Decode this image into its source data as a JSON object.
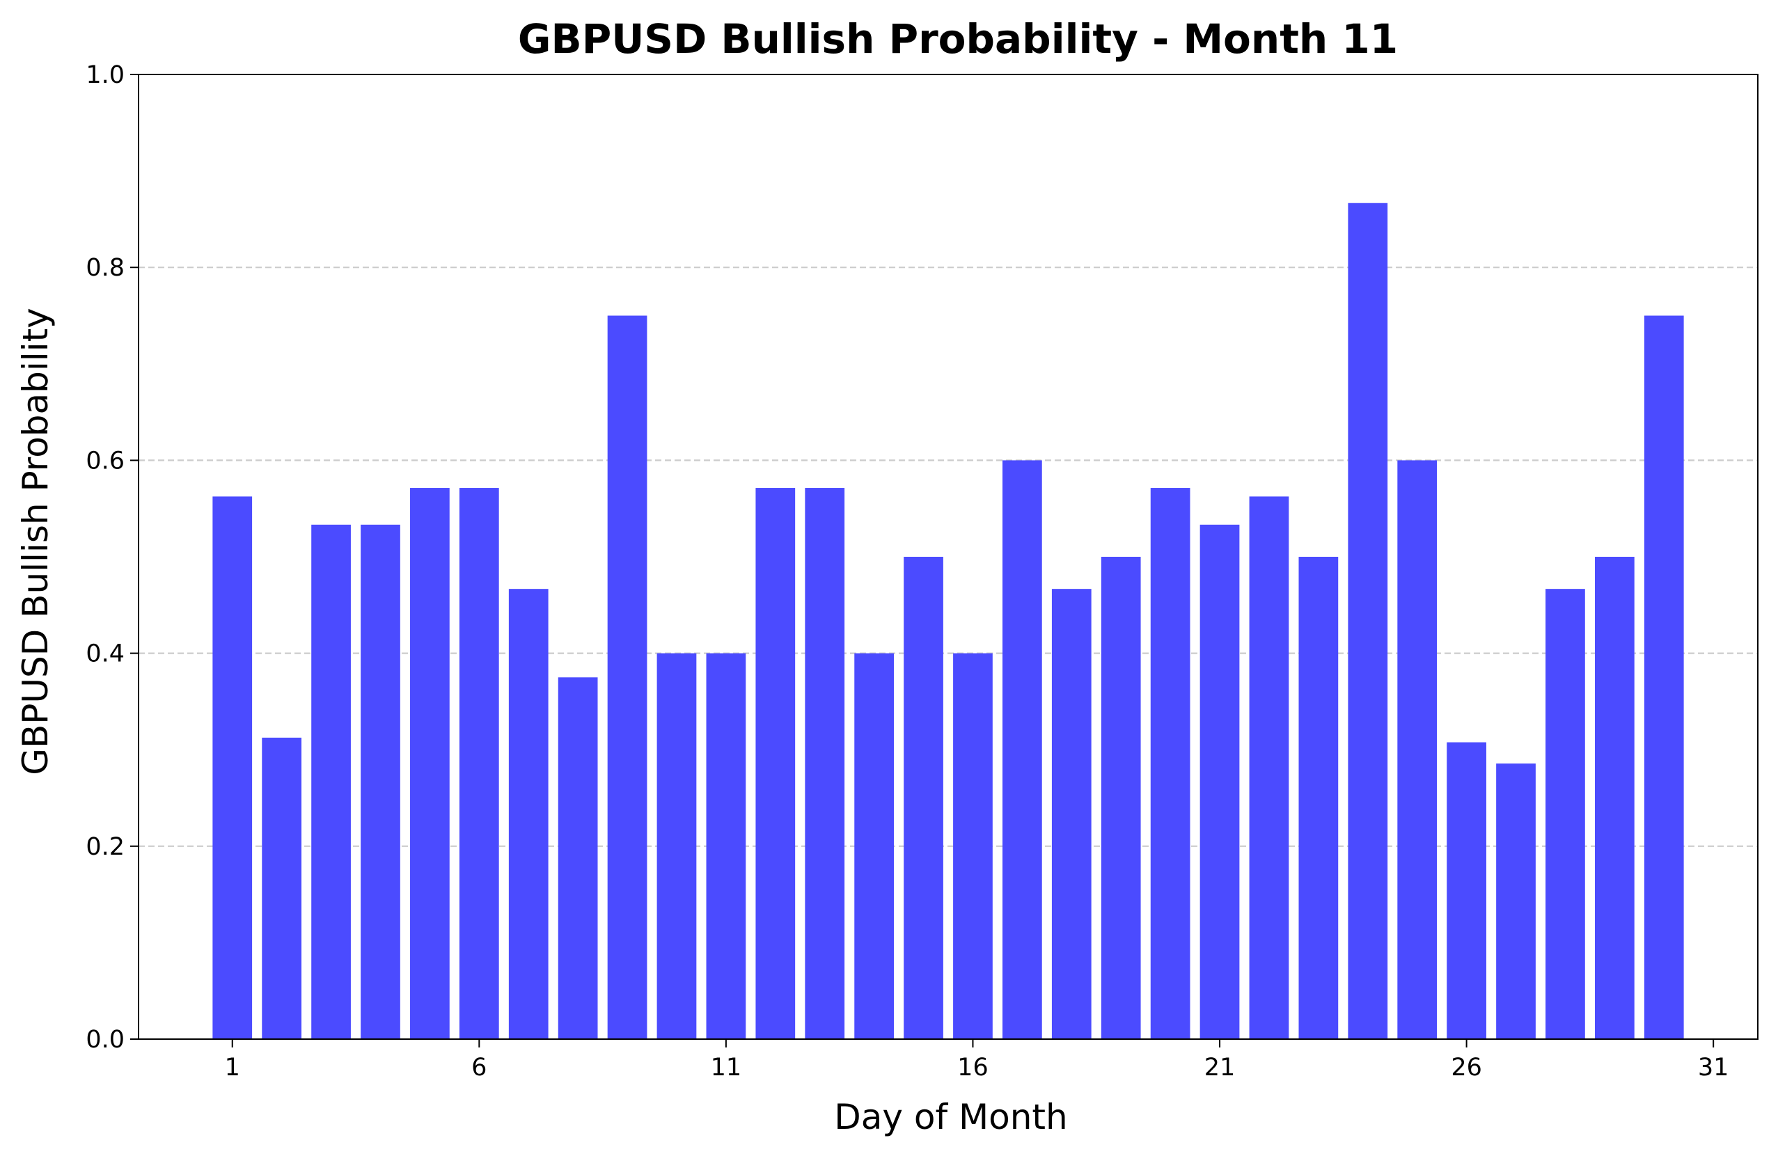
{
  "chart_data": {
    "type": "bar",
    "title": "GBPUSD Bullish Probability - Month 11",
    "xlabel": "Day of Month",
    "ylabel": "GBPUSD Bullish Probability",
    "bar_color": "#4b4bff",
    "grid": {
      "axis": "y",
      "style": "dashed",
      "color": "#cccccc"
    },
    "xlim": [
      -0.9,
      31.9
    ],
    "ylim": [
      0,
      1
    ],
    "x": [
      1,
      2,
      3,
      4,
      5,
      6,
      7,
      8,
      9,
      10,
      11,
      12,
      13,
      14,
      15,
      16,
      17,
      18,
      19,
      20,
      21,
      22,
      23,
      24,
      25,
      26,
      27,
      28,
      29,
      30
    ],
    "values": [
      0.5625,
      0.3125,
      0.5333,
      0.5333,
      0.5714,
      0.5714,
      0.4667,
      0.375,
      0.75,
      0.4,
      0.4,
      0.5714,
      0.5714,
      0.4,
      0.5,
      0.4,
      0.6,
      0.4667,
      0.5,
      0.5714,
      0.5333,
      0.5625,
      0.5,
      0.8667,
      0.6,
      0.3077,
      0.2857,
      0.4667,
      0.5,
      0.75
    ],
    "x_ticks": [
      1,
      6,
      11,
      16,
      21,
      26,
      31
    ],
    "x_tick_labels": [
      "1",
      "6",
      "11",
      "16",
      "21",
      "26",
      "31"
    ],
    "y_ticks": [
      0,
      0.2,
      0.4,
      0.6,
      0.8,
      1.0
    ],
    "y_tick_labels": [
      "0.0",
      "0.2",
      "0.4",
      "0.6",
      "0.8",
      "1.0"
    ]
  }
}
